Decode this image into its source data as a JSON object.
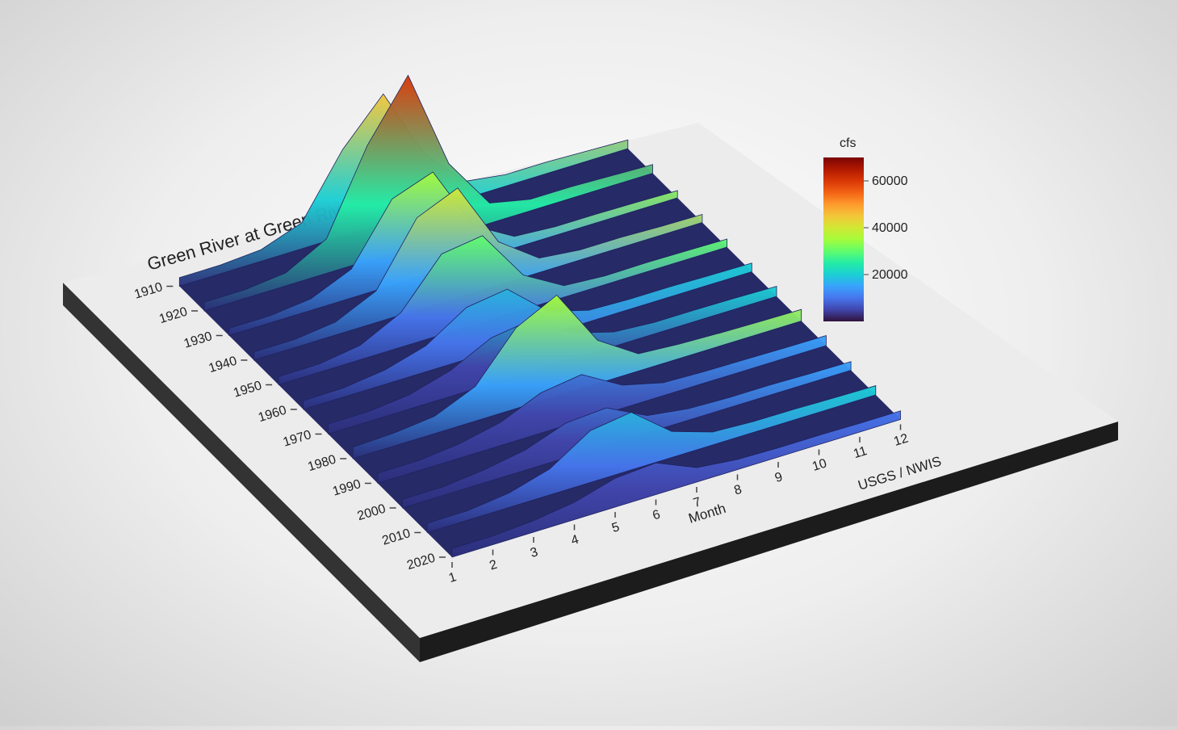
{
  "chart_data": {
    "type": "ridgeline",
    "title": "Green River at Green River UT",
    "caption": "USGS / NWIS",
    "xlabel": "Month",
    "x": [
      1,
      2,
      3,
      4,
      5,
      6,
      7,
      8,
      9,
      10,
      11,
      12
    ],
    "xlim": [
      1,
      12
    ],
    "years": [
      1910,
      1920,
      1930,
      1940,
      1950,
      1960,
      1970,
      1980,
      1990,
      2000,
      2010,
      2020
    ],
    "ylim": [
      1910,
      2020
    ],
    "values": [
      [
        3000,
        3000,
        4000,
        9000,
        30000,
        45000,
        20000,
        6000,
        4000,
        4000,
        3500,
        3000
      ],
      [
        3000,
        3000,
        4500,
        12000,
        40000,
        60000,
        25000,
        7000,
        4000,
        4000,
        3500,
        3000
      ],
      [
        2500,
        2500,
        4000,
        10000,
        30000,
        35000,
        12000,
        4000,
        3000,
        3000,
        2800,
        2500
      ],
      [
        2800,
        2800,
        4500,
        11000,
        32000,
        38000,
        15000,
        5000,
        3500,
        3500,
        3000,
        2800
      ],
      [
        2800,
        2900,
        5000,
        12000,
        28000,
        30000,
        12000,
        4000,
        3000,
        3200,
        3000,
        2800
      ],
      [
        3000,
        3200,
        5000,
        9000,
        18000,
        20000,
        8000,
        4000,
        3500,
        3500,
        3200,
        3000
      ],
      [
        3500,
        3500,
        5000,
        9000,
        16000,
        18000,
        9000,
        5000,
        4000,
        4000,
        3800,
        3500
      ],
      [
        4000,
        4500,
        6000,
        12000,
        28000,
        35000,
        15000,
        6000,
        5000,
        4500,
        4200,
        4000
      ],
      [
        3500,
        3500,
        5000,
        8000,
        14000,
        16000,
        8000,
        4500,
        4000,
        3800,
        3600,
        3500
      ],
      [
        3000,
        3000,
        4500,
        7000,
        12000,
        13000,
        6000,
        4000,
        3500,
        3500,
        3200,
        3000
      ],
      [
        3200,
        3300,
        5000,
        9000,
        18000,
        20000,
        9000,
        4500,
        3800,
        3700,
        3400,
        3200
      ],
      [
        3000,
        3000,
        4000,
        6000,
        10000,
        11000,
        5000,
        3500,
        3200,
        3200,
        3000,
        3000
      ]
    ],
    "colorbar": {
      "title": "cfs",
      "lim": [
        0,
        70000
      ],
      "ticks": [
        20000,
        40000,
        60000
      ]
    },
    "colormap": [
      "#30123b",
      "#4145ab",
      "#4675ed",
      "#39a2fc",
      "#1bcfd4",
      "#24eca6",
      "#61fc6c",
      "#a4fc3b",
      "#d1e834",
      "#f3c63a",
      "#fe9b2d",
      "#f36315",
      "#d93806",
      "#b11901",
      "#7a0402"
    ]
  }
}
